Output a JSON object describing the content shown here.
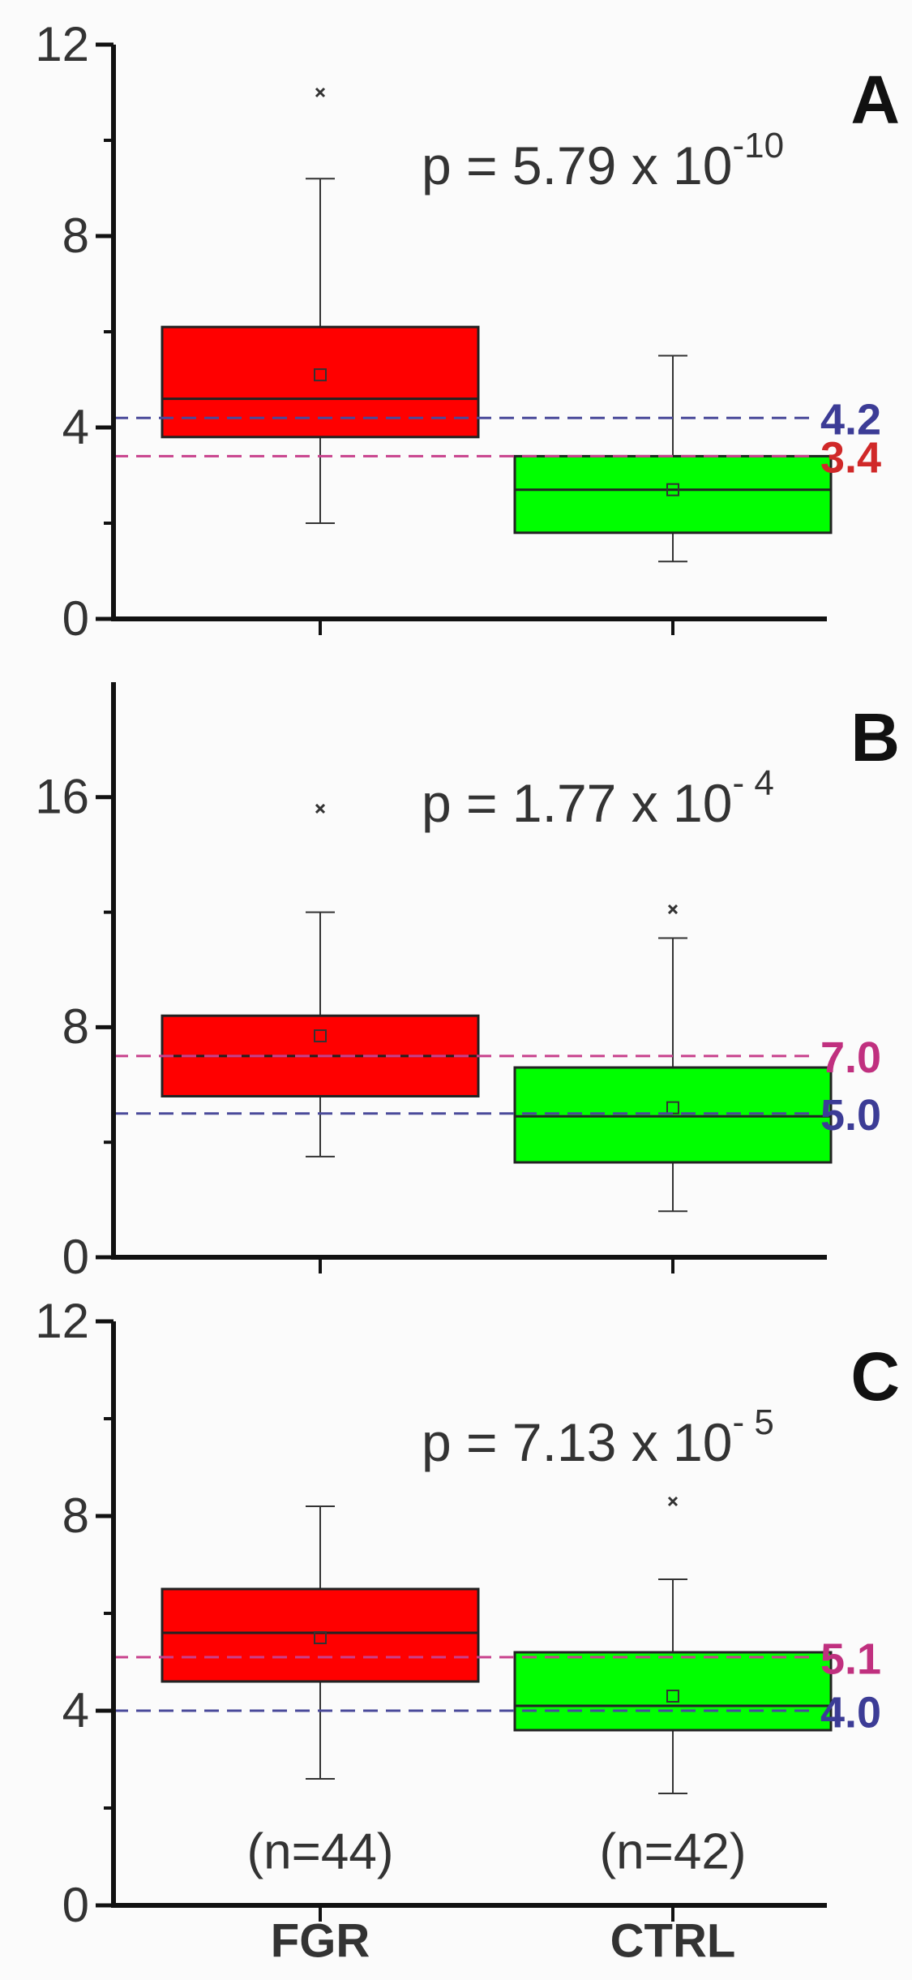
{
  "chart_data": [
    {
      "type": "box",
      "label": "A",
      "p_text": "p = 5.79 x 10",
      "p_exp": "-10",
      "ylim": [
        0,
        12
      ],
      "yticks": [
        0,
        4,
        8,
        12
      ],
      "minor_yticks": [
        2,
        6,
        10
      ],
      "boxes": [
        {
          "color": "#ff0000",
          "whisker_low": 2.0,
          "q1": 3.8,
          "median": 4.6,
          "q3": 6.1,
          "whisker_high": 9.2,
          "mean": 5.1,
          "outliers": [
            11.0
          ]
        },
        {
          "color": "#00ff00",
          "whisker_low": 1.2,
          "q1": 1.8,
          "median": 2.7,
          "q3": 3.4,
          "whisker_high": 5.5,
          "mean": 2.7,
          "outliers": []
        }
      ],
      "ref_lines": [
        {
          "value": 4.2,
          "color": "#4a4a9a",
          "label_color": "#3c3c96"
        },
        {
          "value": 3.4,
          "color": "#c8418c",
          "label_color": "#d02828"
        }
      ]
    },
    {
      "type": "box",
      "label": "B",
      "p_text": "p = 1.77 x 10",
      "p_exp": "- 4",
      "ylim": [
        0,
        20
      ],
      "yticks": [
        0,
        8,
        16
      ],
      "minor_yticks": [
        4,
        12
      ],
      "boxes": [
        {
          "color": "#ff0000",
          "whisker_low": 3.5,
          "q1": 5.6,
          "median": 7.0,
          "q3": 8.4,
          "whisker_high": 12.0,
          "mean": 7.7,
          "outliers": [
            15.6
          ]
        },
        {
          "color": "#00ff00",
          "whisker_low": 1.6,
          "q1": 3.3,
          "median": 4.9,
          "q3": 6.6,
          "whisker_high": 11.1,
          "mean": 5.2,
          "outliers": [
            12.1
          ]
        }
      ],
      "ref_lines": [
        {
          "value": 7.0,
          "label": "7.0",
          "color": "#c8418c",
          "label_color": "#c0307f"
        },
        {
          "value": 5.0,
          "label": "5.0",
          "color": "#4a4a9a",
          "label_color": "#3c3c96"
        }
      ]
    },
    {
      "type": "box",
      "label": "C",
      "p_text": "p = 7.13 x 10",
      "p_exp": "- 5",
      "ylim": [
        0,
        12
      ],
      "yticks": [
        0,
        4,
        8,
        12
      ],
      "minor_yticks": [
        2,
        6,
        10
      ],
      "categories": [
        "FGR",
        "CTRL"
      ],
      "n_labels": [
        "(n=44)",
        "(n=42)"
      ],
      "boxes": [
        {
          "color": "#ff0000",
          "whisker_low": 2.6,
          "q1": 4.6,
          "median": 5.6,
          "q3": 6.5,
          "whisker_high": 8.2,
          "mean": 5.5,
          "outliers": []
        },
        {
          "color": "#00ff00",
          "whisker_low": 2.3,
          "q1": 3.6,
          "median": 4.1,
          "q3": 5.2,
          "whisker_high": 6.7,
          "mean": 4.3,
          "outliers": [
            8.3
          ]
        }
      ],
      "ref_lines": [
        {
          "value": 5.1,
          "color": "#c8418c",
          "label_color": "#c0307f"
        },
        {
          "value": 4.0,
          "label": "4.0",
          "color": "#4a4a9a",
          "label_color": "#3c3c96"
        }
      ]
    }
  ]
}
